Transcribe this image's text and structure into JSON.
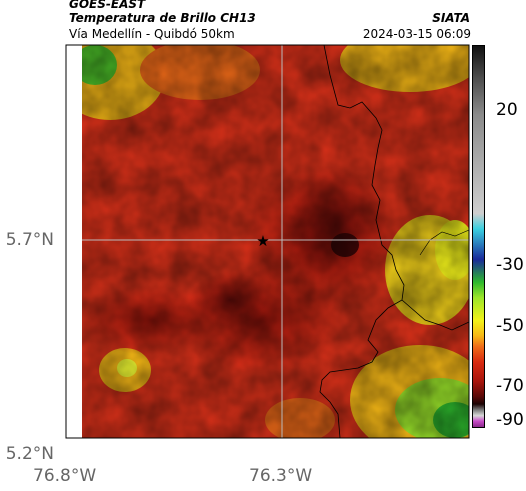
{
  "header": {
    "satellite": "GOES-EAST",
    "product": "Temperatura de Brillo CH13",
    "organization": "SIATA",
    "area": "Vía Medellín - Quibdó 50km",
    "datetime": "2024-03-15 06:09"
  },
  "axes": {
    "lat_labels": [
      "5.7°N",
      "5.2°N"
    ],
    "lon_labels": [
      "76.8°W",
      "76.3°W"
    ]
  },
  "colorbar": {
    "tick_labels": [
      "20",
      "-30",
      "-50",
      "-70",
      "-90"
    ],
    "colors": [
      "#111111",
      "#4a4a4a",
      "#8a8a8a",
      "#cfcfcf",
      "#3ad0e0",
      "#1a2a9a",
      "#2db82d",
      "#9be52a",
      "#f2f21a",
      "#f7b916",
      "#ef6a18",
      "#d82a10",
      "#a8150c",
      "#5a0a08",
      "#1c0404",
      "#7a7a7a",
      "#d8d8d8",
      "#c64ac6",
      "#8a2a8a"
    ]
  },
  "map": {
    "marker": "star-marker",
    "grid_color": "#bbbbbb",
    "border_color": "#000000"
  }
}
